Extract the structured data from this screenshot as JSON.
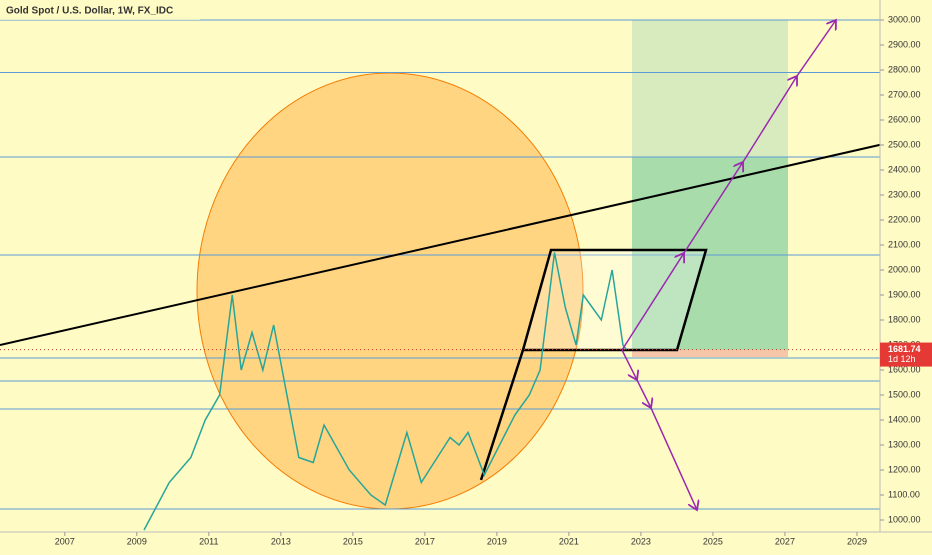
{
  "chart_data": {
    "type": "line",
    "title": "Gold Spot / U.S. Dollar, 1W, FX_IDC",
    "x": [
      2009.2,
      2009.9,
      2010.5,
      2010.9,
      2011.3,
      2011.65,
      2011.9,
      2012.2,
      2012.5,
      2012.8,
      2013.3,
      2013.5,
      2013.9,
      2014.2,
      2014.9,
      2015.5,
      2015.9,
      2016.5,
      2016.9,
      2017.7,
      2017.95,
      2018.2,
      2018.65,
      2019.5,
      2019.9,
      2020.2,
      2020.6,
      2020.9,
      2021.2,
      2021.4,
      2021.9,
      2022.2,
      2022.5,
      2022.6
    ],
    "values": [
      960,
      1150,
      1250,
      1400,
      1500,
      1900,
      1600,
      1750,
      1600,
      1780,
      1400,
      1250,
      1230,
      1380,
      1200,
      1100,
      1060,
      1350,
      1150,
      1330,
      1300,
      1350,
      1180,
      1420,
      1500,
      1600,
      2070,
      1850,
      1700,
      1900,
      1800,
      2000,
      1700,
      1681.74
    ],
    "color": "#26a69a",
    "last_price_label": "1681.74",
    "countdown": "1d 12h",
    "levels": [
      3000,
      2790,
      2452,
      2060,
      1648,
      1556,
      1444,
      1044
    ],
    "xlim": [
      2005.2,
      2029.64
    ],
    "ylim": [
      952,
      3080
    ],
    "xticks": [
      2007,
      2009,
      2011,
      2013,
      2015,
      2017,
      2019,
      2021,
      2023,
      2025,
      2027,
      2029
    ],
    "yticks": [
      {
        "value": 1000,
        "label": "1000.00"
      },
      {
        "value": 1100,
        "label": "1100.00"
      },
      {
        "value": 1200,
        "label": "1200.00"
      },
      {
        "value": 1300,
        "label": "1300.00"
      },
      {
        "value": 1400,
        "label": "1400.00"
      },
      {
        "value": 1500,
        "label": "1500.00"
      },
      {
        "value": 1600,
        "label": "1600.00"
      },
      {
        "value": 1700,
        "label": "1700.00"
      },
      {
        "value": 1800,
        "label": "1800.00"
      },
      {
        "value": 1900,
        "label": "1900.00"
      },
      {
        "value": 2000,
        "label": "2000.00"
      },
      {
        "value": 2100,
        "label": "2100.00"
      },
      {
        "value": 2200,
        "label": "2200.00"
      },
      {
        "value": 2300,
        "label": "2300.00"
      },
      {
        "value": 2400,
        "label": "2400.00"
      },
      {
        "value": 2500,
        "label": "2500.00"
      },
      {
        "value": 2600,
        "label": "2600.00"
      },
      {
        "value": 2700,
        "label": "2700.00"
      },
      {
        "value": 2800,
        "label": "2800.00"
      },
      {
        "value": 2900,
        "label": "2900.00"
      },
      {
        "value": 3000,
        "label": "3000.00"
      }
    ]
  }
}
